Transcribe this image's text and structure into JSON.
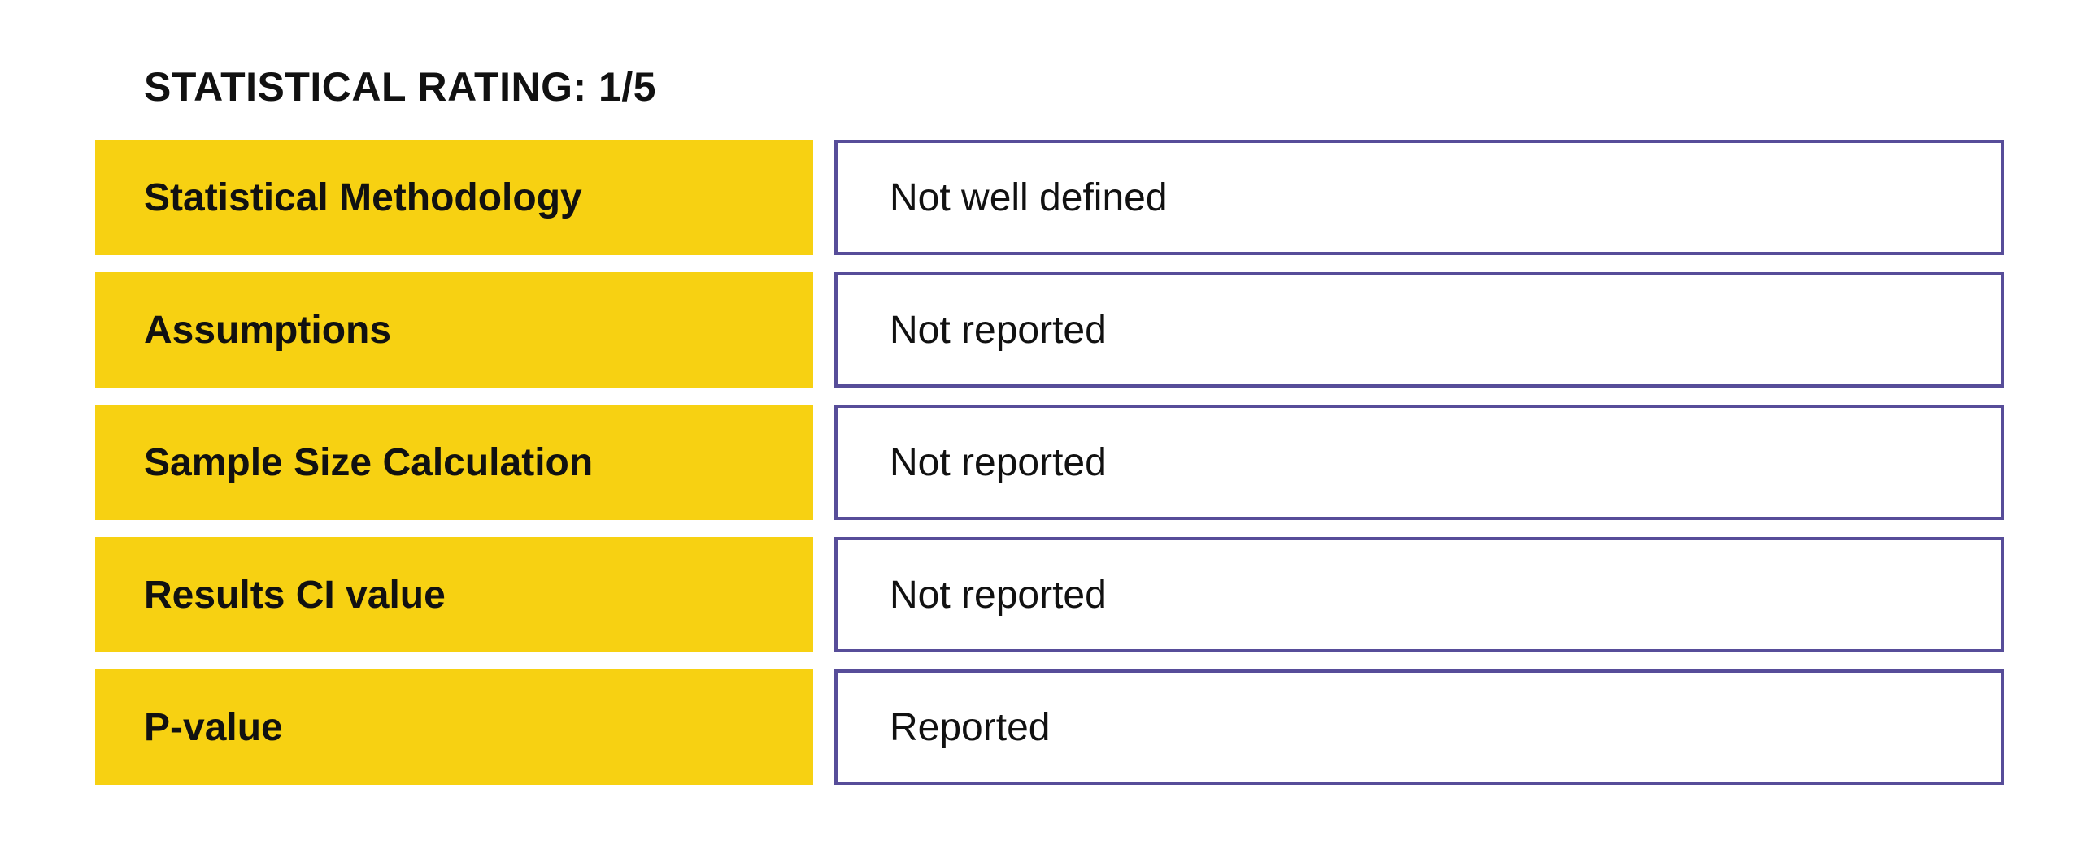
{
  "title": "STATISTICAL RATING: 1/5",
  "colors": {
    "label_background": "#f7d112",
    "value_border": "#574d99",
    "text": "#111111"
  },
  "rows": [
    {
      "label": "Statistical Methodology",
      "value": "Not well defined"
    },
    {
      "label": "Assumptions",
      "value": "Not reported"
    },
    {
      "label": "Sample Size Calculation",
      "value": "Not reported"
    },
    {
      "label": "Results CI value",
      "value": "Not reported"
    },
    {
      "label": "P-value",
      "value": "Reported"
    }
  ]
}
